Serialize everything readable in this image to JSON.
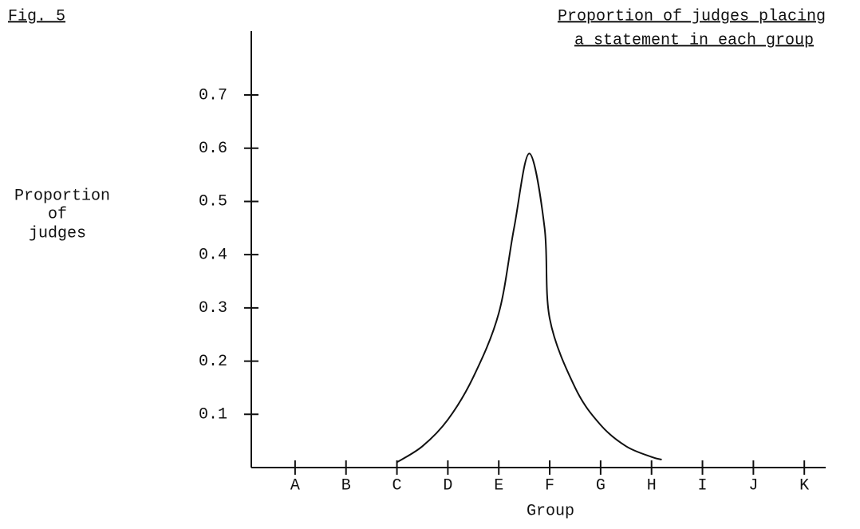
{
  "figure_label": "Fig. 5",
  "chart_data": {
    "type": "line",
    "title": [
      "Proportion of judges placing",
      "a statement in each group"
    ],
    "y_label": [
      "Proportion",
      "of",
      "judges"
    ],
    "x_label": "Group",
    "x": [
      2,
      2.5,
      3,
      3.5,
      4,
      4.3,
      4.6,
      4.9,
      5,
      5.5,
      6,
      6.5,
      7,
      7.2
    ],
    "values": [
      0.01,
      0.04,
      0.09,
      0.17,
      0.29,
      0.45,
      0.59,
      0.45,
      0.28,
      0.15,
      0.08,
      0.04,
      0.02,
      0.015
    ],
    "color": "#111111",
    "xlim": [
      -0.86,
      10.42
    ],
    "xticks": [
      {
        "value": 0,
        "label": "A"
      },
      {
        "value": 1,
        "label": "B"
      },
      {
        "value": 2,
        "label": "C"
      },
      {
        "value": 3,
        "label": "D"
      },
      {
        "value": 4,
        "label": "E"
      },
      {
        "value": 5,
        "label": "F"
      },
      {
        "value": 6,
        "label": "G"
      },
      {
        "value": 7,
        "label": "H"
      },
      {
        "value": 8,
        "label": "I"
      },
      {
        "value": 9,
        "label": "J"
      },
      {
        "value": 10,
        "label": "K"
      }
    ],
    "ylim": [
      0,
      0.82
    ],
    "yticks": [
      0.1,
      0.2,
      0.3,
      0.4,
      0.5,
      0.6,
      0.7
    ]
  }
}
